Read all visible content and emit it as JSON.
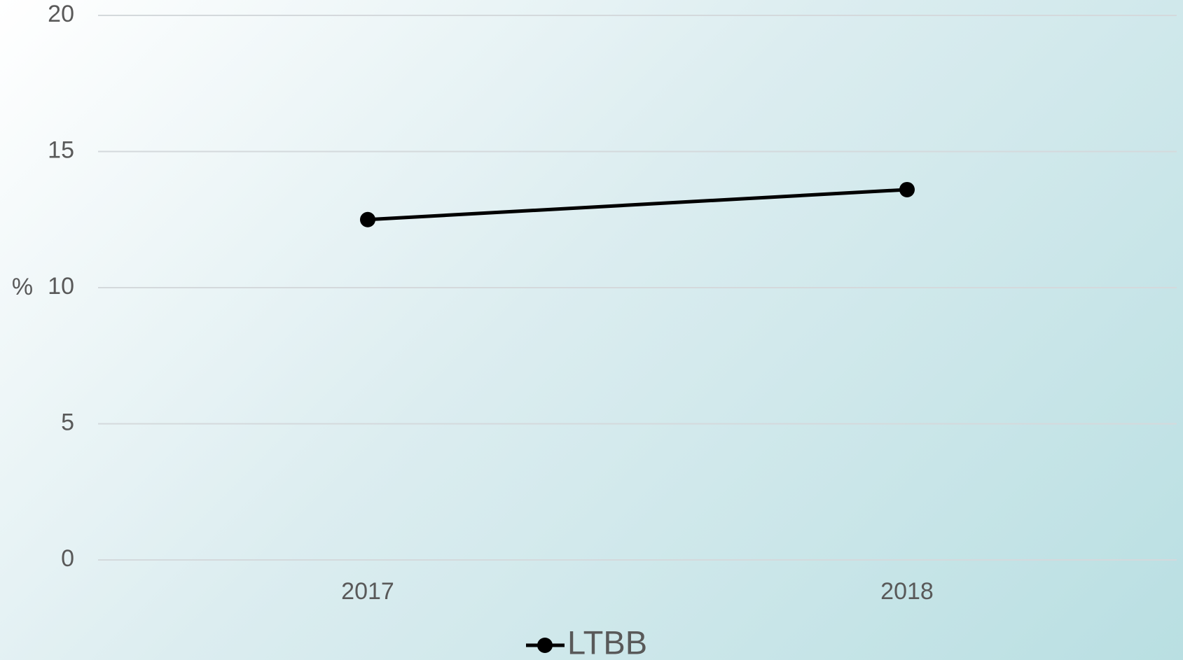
{
  "chart_data": {
    "type": "line",
    "y_label": "%",
    "categories": [
      "2017",
      "2018"
    ],
    "series": [
      {
        "name": "LTBB",
        "color": "#000000",
        "values": [
          12.5,
          13.6
        ]
      }
    ],
    "ylim": [
      0,
      20
    ],
    "yticks": [
      0,
      5,
      10,
      15,
      20
    ],
    "grid": true,
    "legend": "bottom"
  }
}
